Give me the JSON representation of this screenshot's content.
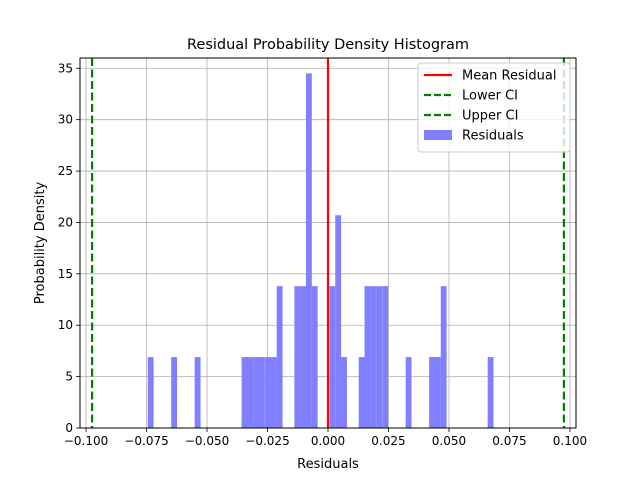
{
  "chart_data": {
    "type": "bar",
    "title": "Residual Probability Density Histogram",
    "xlabel": "Residuals",
    "ylabel": "Probability Density",
    "xlim": [
      -0.1025,
      0.1025
    ],
    "ylim": [
      0,
      36
    ],
    "grid": true,
    "legend_position": "top-right",
    "xticks": [
      -0.1,
      -0.075,
      -0.05,
      -0.025,
      0.0,
      0.025,
      0.05,
      0.075,
      0.1
    ],
    "xtick_labels": [
      "−0.100",
      "−0.075",
      "−0.050",
      "−0.025",
      "0.000",
      "0.025",
      "0.050",
      "0.075",
      "0.100"
    ],
    "yticks": [
      0,
      5,
      10,
      15,
      20,
      25,
      30,
      35
    ],
    "ytick_labels": [
      "0",
      "5",
      "10",
      "15",
      "20",
      "25",
      "30",
      "35"
    ],
    "histogram": {
      "name": "Residuals",
      "color": "#7f7fff",
      "bin_width": 0.00242,
      "bins": [
        {
          "left": -0.0745,
          "height": 6.9
        },
        {
          "left": -0.0648,
          "height": 6.9
        },
        {
          "left": -0.0551,
          "height": 6.9
        },
        {
          "left": -0.0357,
          "height": 6.9
        },
        {
          "left": -0.0333,
          "height": 6.9
        },
        {
          "left": -0.0309,
          "height": 6.9
        },
        {
          "left": -0.0285,
          "height": 6.9
        },
        {
          "left": -0.026,
          "height": 6.9
        },
        {
          "left": -0.0236,
          "height": 6.9
        },
        {
          "left": -0.0212,
          "height": 13.8
        },
        {
          "left": -0.0139,
          "height": 13.8
        },
        {
          "left": -0.0115,
          "height": 13.8
        },
        {
          "left": -0.0091,
          "height": 34.5
        },
        {
          "left": -0.0067,
          "height": 13.8
        },
        {
          "left": 0.0006,
          "height": 13.8
        },
        {
          "left": 0.003,
          "height": 20.7
        },
        {
          "left": 0.0054,
          "height": 6.9
        },
        {
          "left": 0.0127,
          "height": 6.9
        },
        {
          "left": 0.0151,
          "height": 13.8
        },
        {
          "left": 0.0175,
          "height": 13.8
        },
        {
          "left": 0.0199,
          "height": 13.8
        },
        {
          "left": 0.0224,
          "height": 13.8
        },
        {
          "left": 0.0321,
          "height": 6.9
        },
        {
          "left": 0.0418,
          "height": 6.9
        },
        {
          "left": 0.0442,
          "height": 6.9
        },
        {
          "left": 0.0466,
          "height": 13.8
        },
        {
          "left": 0.066,
          "height": 6.9
        }
      ]
    },
    "lines": [
      {
        "name": "Mean Residual",
        "x": 0.0,
        "color": "#ff0000",
        "style": "solid"
      },
      {
        "name": "Lower CI",
        "x": -0.0975,
        "color": "#008000",
        "style": "dashed"
      },
      {
        "name": "Upper CI",
        "x": 0.0975,
        "color": "#008000",
        "style": "dashed"
      }
    ],
    "legend": [
      {
        "label": "Mean Residual",
        "kind": "line",
        "color": "#ff0000",
        "style": "solid"
      },
      {
        "label": "Lower CI",
        "kind": "line",
        "color": "#008000",
        "style": "dashed"
      },
      {
        "label": "Upper CI",
        "kind": "line",
        "color": "#008000",
        "style": "dashed"
      },
      {
        "label": "Residuals",
        "kind": "patch",
        "color": "#7f7fff"
      }
    ]
  }
}
